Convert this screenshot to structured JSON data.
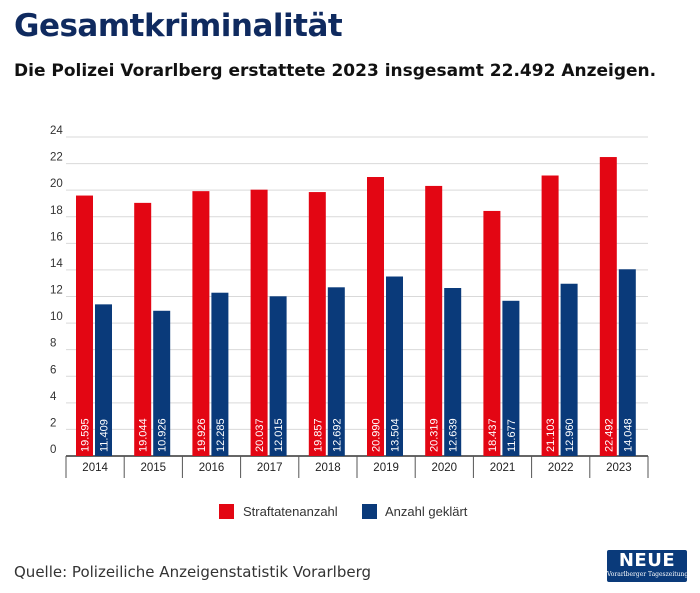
{
  "header": {
    "title": "Gesamtkriminalität",
    "subtitle": "Die Polizei Vorarlberg erstattete 2023 insgesamt 22.492 Anzeigen."
  },
  "chart_data": {
    "type": "bar",
    "title": "Gesamtkriminalität",
    "subtitle": "Die Polizei Vorarlberg erstattete 2023 insgesamt 22.492 Anzeigen.",
    "xlabel": "",
    "ylabel": "",
    "ylim": [
      0,
      24
    ],
    "yticks": [
      0,
      2,
      4,
      6,
      8,
      10,
      12,
      14,
      16,
      18,
      20,
      22,
      24
    ],
    "y_unit_divisor": 1000,
    "grid": true,
    "legend_position": "bottom-center",
    "categories": [
      "2014",
      "2015",
      "2016",
      "2017",
      "2018",
      "2019",
      "2020",
      "2021",
      "2022",
      "2023"
    ],
    "series": [
      {
        "name": "Straftatenanzahl",
        "color": "#e30613",
        "values": [
          19595,
          19044,
          19926,
          20037,
          19857,
          20990,
          20319,
          18437,
          21103,
          22492
        ],
        "labels": [
          "19.595",
          "19.044",
          "19.926",
          "20.037",
          "19.857",
          "20.990",
          "20.319",
          "18.437",
          "21.103",
          "22.492"
        ]
      },
      {
        "name": "Anzahl geklärt",
        "color": "#0a3a7a",
        "values": [
          11409,
          10926,
          12285,
          12015,
          12692,
          13504,
          12639,
          11677,
          12960,
          14048
        ],
        "labels": [
          "11.409",
          "10.926",
          "12.285",
          "12.015",
          "12.692",
          "13.504",
          "12.639",
          "11.677",
          "12.960",
          "14.048"
        ]
      }
    ]
  },
  "footer": {
    "source": "Quelle: Polizeiliche Anzeigenstatistik Vorarlberg",
    "logo_main": "NEUE",
    "logo_sub": "Vorarlberger Tageszeitung"
  }
}
